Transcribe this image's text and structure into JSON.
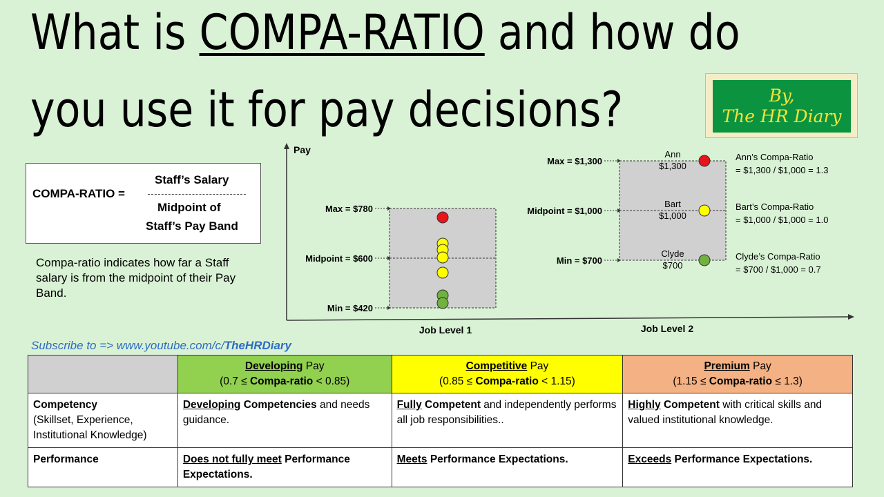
{
  "title": {
    "prefix": "What is ",
    "highlight": "COMPA-RATIO",
    "suffix": " and how do",
    "line2": "you use it for pay decisions?"
  },
  "badge": {
    "line1": "By,",
    "line2": "The HR Diary"
  },
  "formula": {
    "lhs": "COMPA-RATIO =",
    "numerator": "Staff’s Salary",
    "denominator_line1": "Midpoint of",
    "denominator_line2": "Staff’s Pay Band"
  },
  "explanation": "Compa-ratio indicates how far a Staff salary is from the midpoint of their Pay Band.",
  "chart_data": {
    "type": "scatter",
    "ylabel": "Pay",
    "colors": {
      "red": "#e8141b",
      "yellow": "#ffff00",
      "green": "#70b140"
    },
    "levels": [
      {
        "name": "Job Level 1",
        "max_label": "Max = $780",
        "mid_label": "Midpoint = $600",
        "min_label": "Min = $420",
        "max": 780,
        "mid": 600,
        "min": 420,
        "points": [
          {
            "value": 750,
            "color": "red"
          },
          {
            "value": 640,
            "color": "yellow"
          },
          {
            "value": 625,
            "color": "yellow"
          },
          {
            "value": 600,
            "color": "yellow"
          },
          {
            "value": 550,
            "color": "yellow"
          },
          {
            "value": 450,
            "color": "green"
          },
          {
            "value": 430,
            "color": "green"
          }
        ]
      },
      {
        "name": "Job Level 2",
        "max_label": "Max = $1,300",
        "mid_label": "Midpoint = $1,000",
        "min_label": "Min = $700",
        "max": 1300,
        "mid": 1000,
        "min": 700,
        "points": [
          {
            "value": 1300,
            "color": "red",
            "name": "Ann",
            "amount": "$1,300",
            "note_title": "Ann’s Compa-Ratio",
            "note_formula": "= $1,300 / $1,000 = 1.3"
          },
          {
            "value": 1000,
            "color": "yellow",
            "name": "Bart",
            "amount": "$1,000",
            "note_title": "Bart’s Compa-Ratio",
            "note_formula": "= $1,000 / $1,000 = 1.0"
          },
          {
            "value": 700,
            "color": "green",
            "name": "Clyde",
            "amount": "$700",
            "note_title": "Clyde’s Compa-Ratio",
            "note_formula": "= $700 / $1,000 = 0.7"
          }
        ]
      }
    ]
  },
  "subscribe": {
    "text": "Subscribe to  => www.youtube.com/c/",
    "channel": "TheHRDiary"
  },
  "table": {
    "headers": [
      {
        "u": "Developing",
        "rest": " Pay",
        "range_pre": "(0.7 ≤ ",
        "range_bold": "Compa-ratio",
        "range_post": " < 0.85)",
        "color": "#92d050"
      },
      {
        "u": "Competitive",
        "rest": " Pay",
        "range_pre": "(0.85 ≤ ",
        "range_bold": "Compa-ratio",
        "range_post": " < 1.15)",
        "color": "#ffff00"
      },
      {
        "u": "Premium",
        "rest": " Pay",
        "range_pre": "(1.15 ≤ ",
        "range_bold": "Compa-ratio",
        "range_post": " ≤ 1.3)",
        "color": "#f4b183"
      }
    ],
    "rows": [
      {
        "label": "Competency",
        "sublabel": "(Skillset, Experience, Institutional Knowledge)",
        "cells": [
          {
            "u": "Developing",
            "bold": " Competencies",
            "rest": " and needs guidance."
          },
          {
            "u": "Fully",
            "bold": " Competent",
            "rest": " and independently performs all job responsibilities.."
          },
          {
            "u": "Highly",
            "bold": " Competent",
            "rest": " with critical skills and valued institutional knowledge."
          }
        ]
      },
      {
        "label": "Performance",
        "sublabel": "",
        "cells": [
          {
            "u": "Does not fully meet",
            "bold": " Performance Expectations.",
            "rest": ""
          },
          {
            "u": "Meets",
            "bold": " Performance Expectations.",
            "rest": ""
          },
          {
            "u": "Exceeds",
            "bold": " Performance Expectations.",
            "rest": ""
          }
        ]
      }
    ]
  }
}
